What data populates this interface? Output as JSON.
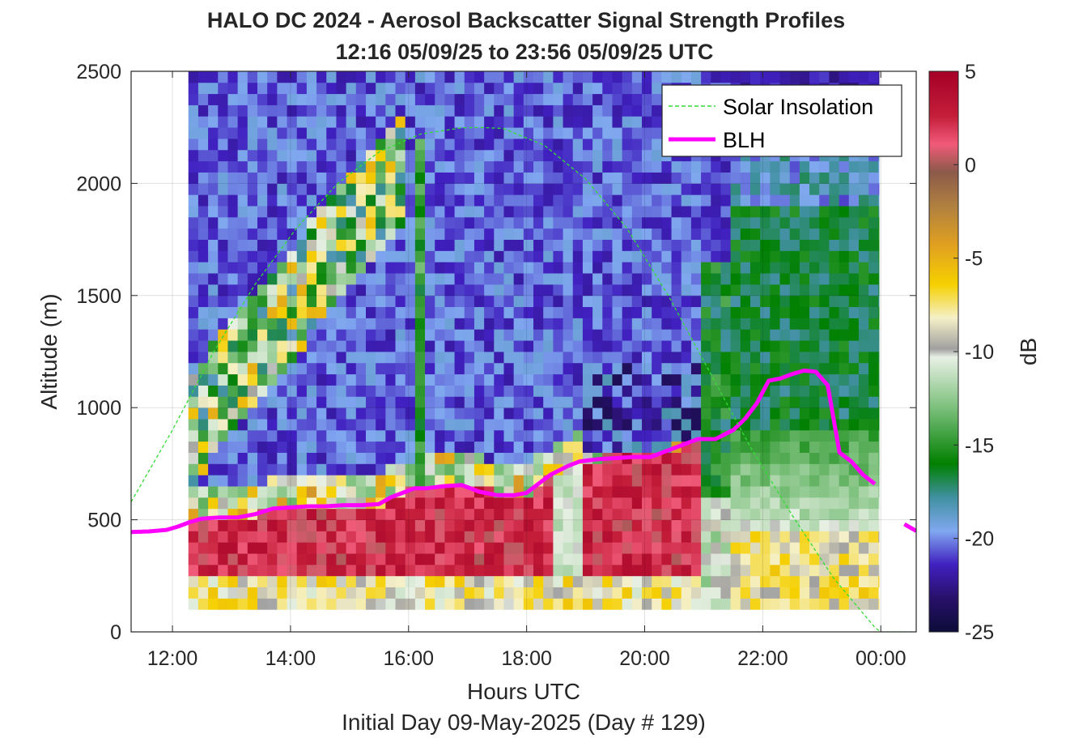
{
  "chart_data": {
    "type": "heatmap",
    "title": "HALO DC 2024 - Aerosol Backscatter Signal Strength Profiles",
    "subtitle": "12:16 05/09/25 to 23:56 05/09/25  UTC",
    "xlabel": "Hours UTC",
    "xlabel2": "Initial Day 09-May-2025 (Day # 129)",
    "ylabel": "Altitude (m)",
    "xlim": [
      11.3,
      24.6
    ],
    "ylim": [
      0,
      2500
    ],
    "x_ticks": [
      12,
      14,
      16,
      18,
      20,
      22,
      24
    ],
    "x_tick_labels": [
      "12:00",
      "14:00",
      "16:00",
      "18:00",
      "20:00",
      "22:00",
      "00:00"
    ],
    "y_ticks": [
      0,
      500,
      1000,
      1500,
      2000,
      2500
    ],
    "y_tick_labels": [
      "0",
      "500",
      "1000",
      "1500",
      "2000",
      "2500"
    ],
    "grid": true,
    "colorbar": {
      "label": "dB",
      "range": [
        -25,
        5
      ],
      "ticks": [
        5,
        0,
        -5,
        -10,
        -15,
        -20,
        -25
      ],
      "tick_labels": [
        "5",
        "0",
        "-5",
        "-10",
        "-15",
        "-20",
        "-25"
      ]
    },
    "heatmap": {
      "x_start": 12.27,
      "x_end": 23.97,
      "x_step": 0.167,
      "alt_start": 100,
      "alt_end": 2500,
      "alt_step": 50,
      "description_of_fields": "dB values per column of x, rows of altitude"
    },
    "legend": {
      "position": "top-right",
      "entries": [
        {
          "name": "Solar Insolation",
          "color": "#33dd33",
          "style": "dashed"
        },
        {
          "name": "BLH",
          "color": "#ff00ff",
          "style": "solid"
        }
      ]
    },
    "series": [
      {
        "name": "BLH",
        "color": "#ff00ff",
        "x": [
          11.3,
          11.6,
          11.9,
          12.1,
          12.3,
          12.5,
          12.8,
          13.1,
          13.4,
          13.7,
          14.0,
          14.3,
          14.6,
          14.9,
          15.2,
          15.5,
          15.7,
          15.9,
          16.1,
          16.3,
          16.6,
          16.9,
          17.2,
          17.5,
          17.8,
          18.0,
          18.2,
          18.4,
          18.7,
          18.9,
          19.2,
          19.5,
          19.8,
          20.1,
          20.4,
          20.6,
          20.9,
          21.2,
          21.5,
          21.7,
          21.9,
          22.1,
          22.3,
          22.5,
          22.7,
          22.9,
          23.1,
          23.3,
          23.5,
          23.7,
          23.9,
          24.1
        ],
        "y": [
          445,
          448,
          455,
          470,
          490,
          505,
          510,
          510,
          525,
          550,
          555,
          560,
          560,
          565,
          565,
          570,
          600,
          620,
          640,
          640,
          650,
          655,
          625,
          610,
          610,
          620,
          660,
          700,
          740,
          760,
          770,
          775,
          780,
          780,
          810,
          830,
          860,
          860,
          900,
          950,
          1020,
          1120,
          1130,
          1150,
          1165,
          1160,
          1100,
          800,
          760,
          700,
          660,
          null
        ]
      },
      {
        "name": "BLH (next day segment)",
        "color": "#ff00ff",
        "x": [
          24.4,
          24.6
        ],
        "y": [
          480,
          450
        ]
      },
      {
        "name": "Solar Insolation",
        "color": "#33dd33",
        "x": [
          11.3,
          12.0,
          12.7,
          13.4,
          14.1,
          14.8,
          15.5,
          16.2,
          16.9,
          17.2,
          17.6,
          18.3,
          19.0,
          19.7,
          20.4,
          21.1,
          21.8,
          22.5,
          23.2,
          23.9,
          24.0,
          24.6
        ],
        "y": [
          580,
          900,
          1250,
          1550,
          1800,
          2000,
          2140,
          2220,
          2248,
          2250,
          2245,
          2170,
          2020,
          1800,
          1500,
          1160,
          820,
          520,
          240,
          20,
          0,
          0
        ]
      }
    ]
  }
}
